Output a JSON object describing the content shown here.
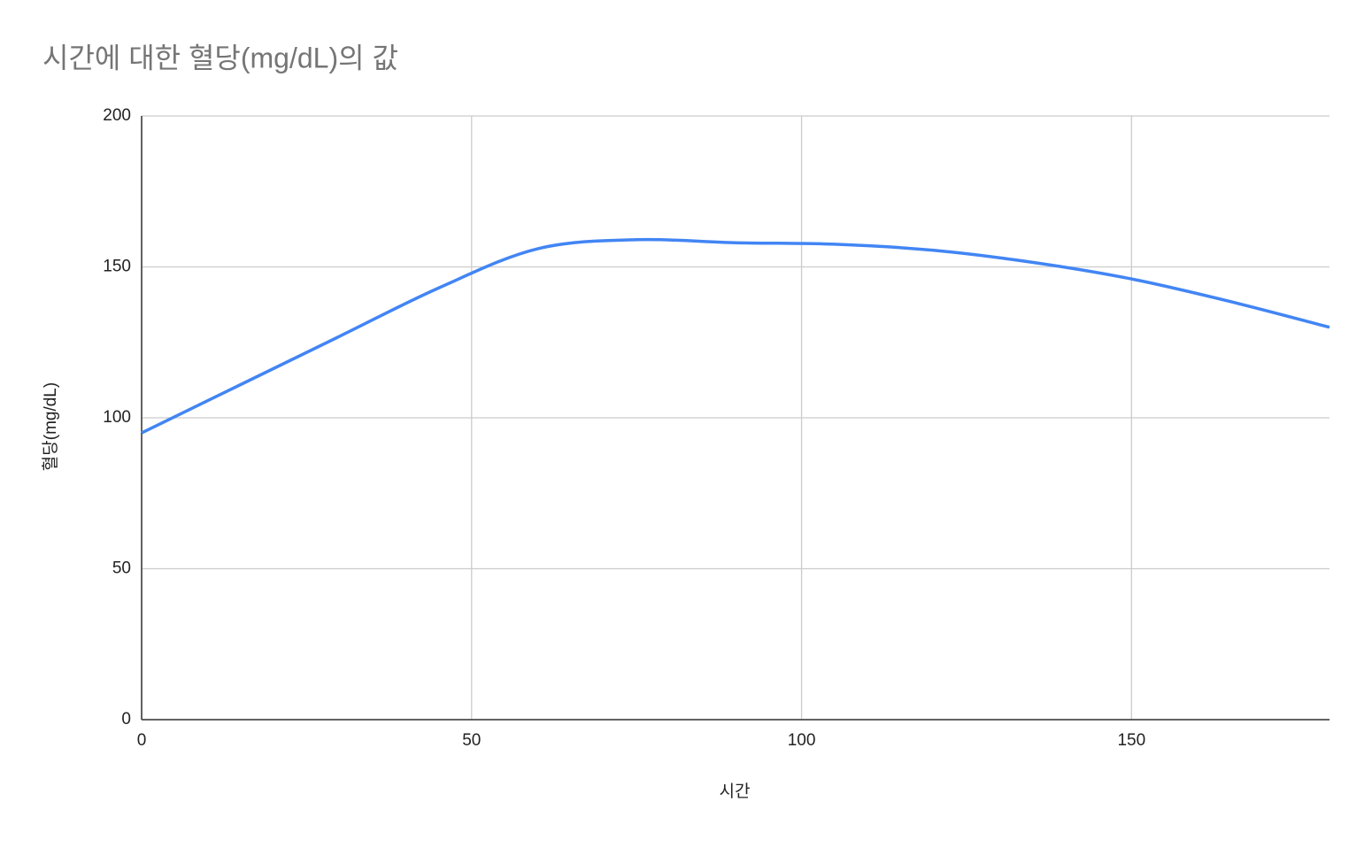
{
  "chart_data": {
    "type": "line",
    "title": "시간에 대한 혈당(mg/dL)의 값",
    "x_label": "시간",
    "y_label": "혈당(mg/dL)",
    "x": [
      0,
      15,
      30,
      45,
      60,
      75,
      90,
      105,
      120,
      135,
      150,
      165,
      180
    ],
    "series": [
      {
        "name": "혈당(mg/dL)",
        "color": "#4285f4",
        "values": [
          95,
          111,
          127,
          143,
          156,
          159,
          158,
          157.5,
          155.5,
          151.5,
          146,
          138.5,
          130
        ]
      }
    ],
    "xlim": [
      0,
      180
    ],
    "xticks": [
      0,
      50,
      100,
      150
    ],
    "ylim": [
      0,
      200
    ],
    "yticks": [
      0,
      50,
      100,
      150,
      200
    ],
    "grid": true
  }
}
